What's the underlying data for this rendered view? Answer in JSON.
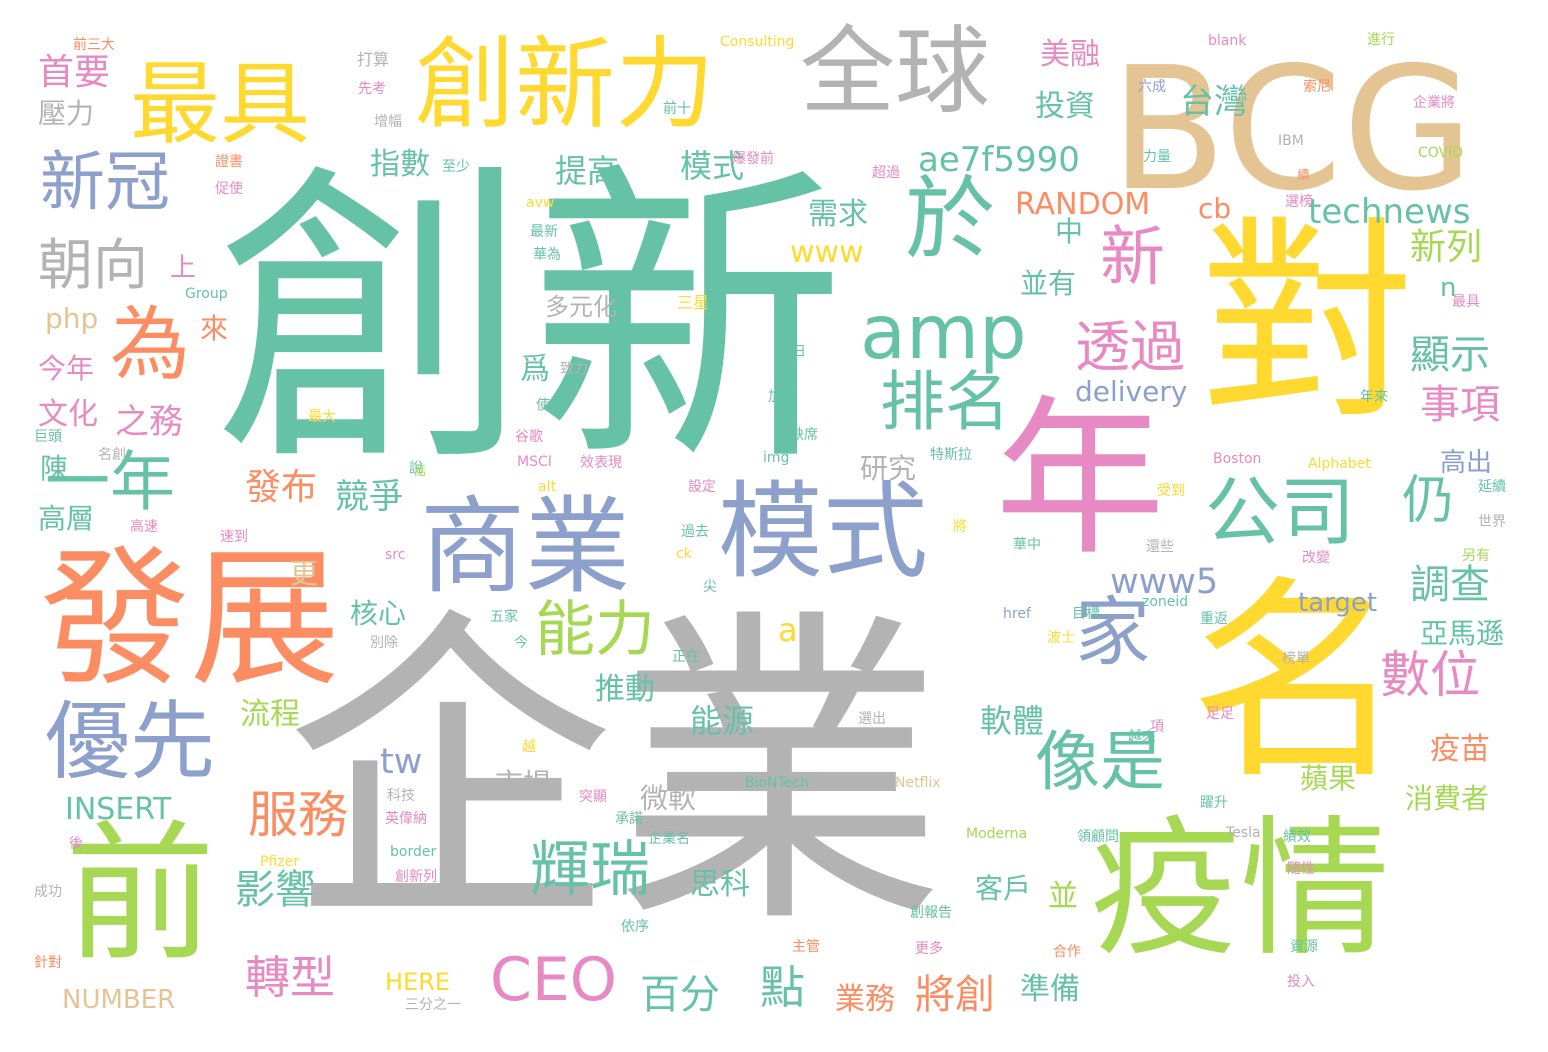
{
  "palette": {
    "teal": "#66c2a5",
    "orange": "#fc8d62",
    "blue": "#8da0cb",
    "pink": "#e78ac3",
    "green": "#a6d854",
    "yellow": "#ffd92f",
    "tan": "#e5c494",
    "gray": "#b3b3b3"
  },
  "words": [
    {
      "text": "創新",
      "color": "teal"
    },
    {
      "text": "企業",
      "color": "gray"
    },
    {
      "text": "對",
      "color": "yellow"
    },
    {
      "text": "名",
      "color": "yellow"
    },
    {
      "text": "BCG",
      "color": "tan"
    },
    {
      "text": "年",
      "color": "pink"
    },
    {
      "text": "發展",
      "color": "orange"
    },
    {
      "text": "疫情",
      "color": "green"
    },
    {
      "text": "前",
      "color": "green"
    },
    {
      "text": "商業",
      "color": "blue"
    },
    {
      "text": "模式",
      "color": "blue"
    },
    {
      "text": "創新力",
      "color": "yellow"
    },
    {
      "text": "全球",
      "color": "gray"
    },
    {
      "text": "最具",
      "color": "yellow"
    },
    {
      "text": "優先",
      "color": "blue"
    },
    {
      "text": "公司",
      "color": "teal"
    },
    {
      "text": "於",
      "color": "teal"
    },
    {
      "text": "amp",
      "color": "teal"
    },
    {
      "text": "為",
      "color": "orange"
    },
    {
      "text": "新冠",
      "color": "blue"
    },
    {
      "text": "家",
      "color": "blue"
    },
    {
      "text": "一年",
      "color": "teal"
    },
    {
      "text": "排名",
      "color": "teal"
    },
    {
      "text": "CEO",
      "color": "pink"
    },
    {
      "text": "像是",
      "color": "teal"
    },
    {
      "text": "輝瑞",
      "color": "teal"
    },
    {
      "text": "能力",
      "color": "green"
    },
    {
      "text": "新",
      "color": "pink"
    },
    {
      "text": "透過",
      "color": "pink"
    },
    {
      "text": "服務",
      "color": "orange"
    },
    {
      "text": "數位",
      "color": "pink"
    },
    {
      "text": "朝向",
      "color": "gray"
    },
    {
      "text": "仍",
      "color": "teal"
    },
    {
      "text": "轉型",
      "color": "pink"
    },
    {
      "text": "百分",
      "color": "teal"
    },
    {
      "text": "點",
      "color": "teal"
    },
    {
      "text": "technews",
      "color": "teal"
    },
    {
      "text": "ae7f5990",
      "color": "teal"
    },
    {
      "text": "影響",
      "color": "teal"
    },
    {
      "text": "將創",
      "color": "orange"
    },
    {
      "text": "調查",
      "color": "teal"
    },
    {
      "text": "www5",
      "color": "blue"
    },
    {
      "text": "RANDOM",
      "color": "orange"
    },
    {
      "text": "tw",
      "color": "blue"
    },
    {
      "text": "INSERT",
      "color": "teal"
    },
    {
      "text": "NUMBER",
      "color": "tan"
    },
    {
      "text": "HERE",
      "color": "yellow"
    },
    {
      "text": "www",
      "color": "yellow"
    },
    {
      "text": "delivery",
      "color": "blue"
    },
    {
      "text": "顯示",
      "color": "teal"
    },
    {
      "text": "事項",
      "color": "pink"
    },
    {
      "text": "新列",
      "color": "green"
    },
    {
      "text": "首要",
      "color": "pink"
    },
    {
      "text": "壓力",
      "color": "gray"
    },
    {
      "text": "發布",
      "color": "orange"
    },
    {
      "text": "競爭",
      "color": "teal"
    },
    {
      "text": "指數",
      "color": "teal"
    },
    {
      "text": "提高",
      "color": "teal"
    },
    {
      "text": "模式",
      "color": "teal"
    },
    {
      "text": "美融",
      "color": "pink"
    },
    {
      "text": "投資",
      "color": "teal"
    },
    {
      "text": "台灣",
      "color": "teal"
    },
    {
      "text": "cb",
      "color": "orange"
    },
    {
      "text": "需求",
      "color": "teal"
    },
    {
      "text": "並有",
      "color": "teal"
    },
    {
      "text": "中",
      "color": "teal"
    },
    {
      "text": "多元化",
      "color": "gray"
    },
    {
      "text": "之務",
      "color": "pink"
    },
    {
      "text": "文化",
      "color": "pink"
    },
    {
      "text": "今年",
      "color": "pink"
    },
    {
      "text": "上",
      "color": "pink"
    },
    {
      "text": "來",
      "color": "orange"
    },
    {
      "text": "php",
      "color": "tan"
    },
    {
      "text": "陳",
      "color": "teal"
    },
    {
      "text": "高層",
      "color": "teal"
    },
    {
      "text": "核心",
      "color": "teal"
    },
    {
      "text": "更",
      "color": "tan"
    },
    {
      "text": "流程",
      "color": "green"
    },
    {
      "text": "推動",
      "color": "teal"
    },
    {
      "text": "市場",
      "color": "gray"
    },
    {
      "text": "微軟",
      "color": "gray"
    },
    {
      "text": "能源",
      "color": "teal"
    },
    {
      "text": "軟體",
      "color": "teal"
    },
    {
      "text": "研究",
      "color": "gray"
    },
    {
      "text": "客戶",
      "color": "teal"
    },
    {
      "text": "思科",
      "color": "teal"
    },
    {
      "text": "業務",
      "color": "orange"
    },
    {
      "text": "準備",
      "color": "teal"
    },
    {
      "text": "並",
      "color": "green"
    },
    {
      "text": "target",
      "color": "blue"
    },
    {
      "text": "亞馬遜",
      "color": "teal"
    },
    {
      "text": "高出",
      "color": "blue"
    },
    {
      "text": "疫苗",
      "color": "orange"
    },
    {
      "text": "蘋果",
      "color": "green"
    },
    {
      "text": "消費者",
      "color": "green"
    },
    {
      "text": "a",
      "color": "yellow"
    },
    {
      "text": "爲",
      "color": "teal"
    },
    {
      "text": "n",
      "color": "teal"
    },
    {
      "text": "前三大",
      "color": "orange"
    },
    {
      "text": "打算",
      "color": "gray"
    },
    {
      "text": "先考",
      "color": "pink"
    },
    {
      "text": "增幅",
      "color": "gray"
    },
    {
      "text": "前十",
      "color": "teal"
    },
    {
      "text": "Consulting",
      "color": "yellow"
    },
    {
      "text": "blank",
      "color": "pink"
    },
    {
      "text": "進行",
      "color": "green"
    },
    {
      "text": "六成",
      "color": "blue"
    },
    {
      "text": "索尼",
      "color": "orange"
    },
    {
      "text": "企業將",
      "color": "pink"
    },
    {
      "text": "IBM",
      "color": "gray"
    },
    {
      "text": "力量",
      "color": "teal"
    },
    {
      "text": "COVID",
      "color": "green"
    },
    {
      "text": "續",
      "color": "orange"
    },
    {
      "text": "選榜",
      "color": "pink"
    },
    {
      "text": "最具",
      "color": "pink"
    },
    {
      "text": "年來",
      "color": "teal"
    },
    {
      "text": "延續",
      "color": "teal"
    },
    {
      "text": "世界",
      "color": "gray"
    },
    {
      "text": "另有",
      "color": "green"
    },
    {
      "text": "證書",
      "color": "orange"
    },
    {
      "text": "促使",
      "color": "pink"
    },
    {
      "text": "至少",
      "color": "teal"
    },
    {
      "text": "爆發前",
      "color": "pink"
    },
    {
      "text": "超過",
      "color": "pink"
    },
    {
      "text": "avw",
      "color": "yellow"
    },
    {
      "text": "最新",
      "color": "teal"
    },
    {
      "text": "華為",
      "color": "teal"
    },
    {
      "text": "Group",
      "color": "teal"
    },
    {
      "text": "三星",
      "color": "yellow"
    },
    {
      "text": "致力",
      "color": "gray"
    },
    {
      "text": "日",
      "color": "teal"
    },
    {
      "text": "加大",
      "color": "teal"
    },
    {
      "text": "最大",
      "color": "yellow"
    },
    {
      "text": "使",
      "color": "teal"
    },
    {
      "text": "谷歌",
      "color": "pink"
    },
    {
      "text": "缺席",
      "color": "teal"
    },
    {
      "text": "說",
      "color": "teal"
    },
    {
      "text": "巨頭",
      "color": "teal"
    },
    {
      "text": "名創",
      "color": "gray"
    },
    {
      "text": "MSCI",
      "color": "pink"
    },
    {
      "text": "效表現",
      "color": "pink"
    },
    {
      "text": "img",
      "color": "teal"
    },
    {
      "text": "特斯拉",
      "color": "teal"
    },
    {
      "text": "Boston",
      "color": "pink"
    },
    {
      "text": "Alphabet",
      "color": "yellow"
    },
    {
      "text": "話",
      "color": "green"
    },
    {
      "text": "alt",
      "color": "yellow"
    },
    {
      "text": "設定",
      "color": "pink"
    },
    {
      "text": "受到",
      "color": "yellow"
    },
    {
      "text": "高速",
      "color": "pink"
    },
    {
      "text": "過去",
      "color": "teal"
    },
    {
      "text": "將",
      "color": "yellow"
    },
    {
      "text": "速到",
      "color": "pink"
    },
    {
      "text": "src",
      "color": "pink"
    },
    {
      "text": "ck",
      "color": "yellow"
    },
    {
      "text": "華中",
      "color": "teal"
    },
    {
      "text": "還些",
      "color": "gray"
    },
    {
      "text": "改變",
      "color": "pink"
    },
    {
      "text": "尖",
      "color": "teal"
    },
    {
      "text": "五家",
      "color": "teal"
    },
    {
      "text": "href",
      "color": "blue"
    },
    {
      "text": "目標",
      "color": "teal"
    },
    {
      "text": "zoneid",
      "color": "teal"
    },
    {
      "text": "重返",
      "color": "teal"
    },
    {
      "text": "別除",
      "color": "gray"
    },
    {
      "text": "今",
      "color": "teal"
    },
    {
      "text": "正在",
      "color": "teal"
    },
    {
      "text": "波士",
      "color": "yellow"
    },
    {
      "text": "榜單",
      "color": "gray"
    },
    {
      "text": "選出",
      "color": "gray"
    },
    {
      "text": "越",
      "color": "yellow"
    },
    {
      "text": "越來",
      "color": "teal"
    },
    {
      "text": "項",
      "color": "pink"
    },
    {
      "text": "足足",
      "color": "pink"
    },
    {
      "text": "BioNTech",
      "color": "teal"
    },
    {
      "text": "Netflix",
      "color": "tan"
    },
    {
      "text": "科技",
      "color": "gray"
    },
    {
      "text": "突顯",
      "color": "pink"
    },
    {
      "text": "英偉納",
      "color": "pink"
    },
    {
      "text": "承諾",
      "color": "teal"
    },
    {
      "text": "企業名",
      "color": "teal"
    },
    {
      "text": "躍升",
      "color": "teal"
    },
    {
      "text": "Moderna",
      "color": "green"
    },
    {
      "text": "領顧問",
      "color": "teal"
    },
    {
      "text": "Tesla",
      "color": "gray"
    },
    {
      "text": "績效",
      "color": "teal"
    },
    {
      "text": "後",
      "color": "pink"
    },
    {
      "text": "border",
      "color": "teal"
    },
    {
      "text": "Pfizer",
      "color": "yellow"
    },
    {
      "text": "隨性",
      "color": "pink"
    },
    {
      "text": "創新列",
      "color": "pink"
    },
    {
      "text": "成功",
      "color": "gray"
    },
    {
      "text": "處",
      "color": "gray"
    },
    {
      "text": "依序",
      "color": "teal"
    },
    {
      "text": "創報告",
      "color": "teal"
    },
    {
      "text": "主管",
      "color": "orange"
    },
    {
      "text": "更多",
      "color": "pink"
    },
    {
      "text": "資源",
      "color": "teal"
    },
    {
      "text": "針對",
      "color": "orange"
    },
    {
      "text": "合作",
      "color": "orange"
    },
    {
      "text": "投入",
      "color": "pink"
    },
    {
      "text": "三分之一",
      "color": "gray"
    }
  ]
}
